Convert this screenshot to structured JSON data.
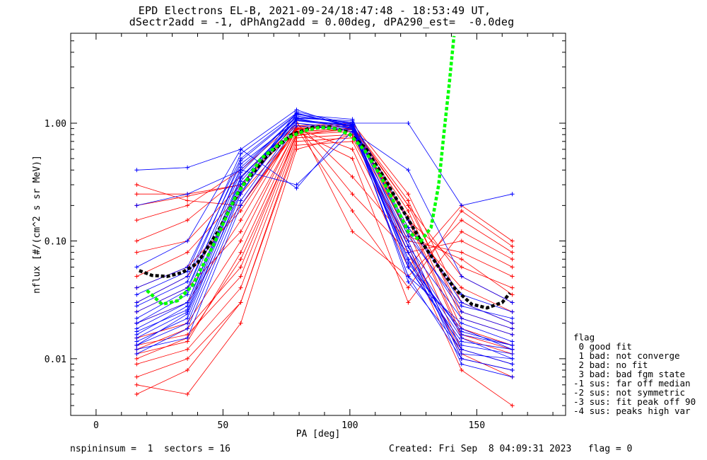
{
  "title_line1": "EPD Electrons EL-B, 2021-09-24/18:47:48 - 18:53:49 UT,",
  "title_line2": "dSectr2add = -1, dPhAng2add = 0.00deg, dPA290_est=  -0.0deg",
  "legend": {
    "title": "flag",
    "items": [
      " 0 good fit",
      " 1 bad: not converge",
      " 2 bad: no fit",
      " 3 bad: bad fgm state",
      "-1 sus: far off median",
      "-2 sus: not symmetric",
      "-3 sus: fit peak off 90",
      "-4 sus: peaks high var"
    ]
  },
  "footer": {
    "left": "nspininsum =  1  sectors = 16",
    "right": "Created: Fri Sep  8 04:09:31 2023   flag = 0"
  },
  "colors": {
    "red": "#ff0000",
    "blue": "#0000ff",
    "green": "#00ff00",
    "black": "#000000"
  },
  "chart_data": {
    "type": "line",
    "xlabel": "PA [deg]",
    "ylabel": "nflux [#/(cm^2 s sr MeV)]",
    "xlim": [
      -10,
      185
    ],
    "ylim": [
      0.0033,
      5.8
    ],
    "yscale": "log",
    "xticks": [
      0,
      50,
      100,
      150
    ],
    "xtick_labels": [
      "0",
      "50",
      "100",
      "150"
    ],
    "yticks": [
      0.01,
      0.1,
      1.0
    ],
    "ytick_labels": [
      "0.01",
      "0.10",
      "1.00"
    ],
    "sector_pa": [
      16,
      36,
      57,
      79,
      101,
      123,
      144,
      164
    ],
    "series": [
      {
        "color": "red",
        "curves": [
          [
            0.011,
            0.014,
            0.08,
            0.85,
            0.9,
            0.18,
            0.018,
            0.013
          ],
          [
            0.013,
            0.016,
            0.05,
            0.8,
            0.85,
            0.15,
            0.015,
            0.011
          ],
          [
            0.009,
            0.012,
            0.04,
            0.75,
            0.8,
            0.12,
            0.012,
            0.009
          ],
          [
            0.007,
            0.01,
            0.03,
            0.7,
            0.75,
            0.1,
            0.01,
            0.008
          ],
          [
            0.015,
            0.02,
            0.1,
            0.9,
            0.95,
            0.22,
            0.022,
            0.016
          ],
          [
            0.02,
            0.03,
            0.15,
            0.95,
            1.0,
            0.25,
            0.03,
            0.02
          ],
          [
            0.03,
            0.05,
            0.2,
            0.9,
            0.95,
            0.2,
            0.05,
            0.03
          ],
          [
            0.05,
            0.08,
            0.25,
            0.85,
            0.9,
            0.15,
            0.06,
            0.04
          ],
          [
            0.08,
            0.1,
            0.3,
            1.0,
            0.35,
            0.1,
            0.08,
            0.05
          ],
          [
            0.1,
            0.15,
            0.35,
            0.95,
            0.25,
            0.08,
            0.1,
            0.06
          ],
          [
            0.15,
            0.2,
            0.4,
            1.05,
            0.12,
            0.05,
            0.15,
            0.08
          ],
          [
            0.2,
            0.24,
            0.3,
            0.9,
            0.6,
            0.06,
            0.2,
            0.1
          ],
          [
            0.25,
            0.25,
            0.3,
            0.9,
            0.18,
            0.04,
            0.18,
            0.09
          ],
          [
            0.3,
            0.22,
            0.2,
            0.85,
            0.5,
            0.03,
            0.12,
            0.07
          ],
          [
            0.005,
            0.008,
            0.03,
            0.65,
            0.7,
            0.08,
            0.008,
            0.004
          ],
          [
            0.006,
            0.005,
            0.02,
            0.6,
            0.8,
            0.09,
            0.011,
            0.007
          ],
          [
            0.012,
            0.018,
            0.06,
            0.82,
            0.88,
            0.16,
            0.016,
            0.012
          ],
          [
            0.01,
            0.015,
            0.07,
            0.78,
            0.92,
            0.2,
            0.025,
            0.018
          ],
          [
            0.025,
            0.04,
            0.12,
            0.88,
            0.96,
            0.13,
            0.04,
            0.025
          ],
          [
            0.04,
            0.06,
            0.18,
            0.92,
            0.98,
            0.11,
            0.07,
            0.035
          ]
        ]
      },
      {
        "color": "blue",
        "curves": [
          [
            0.013,
            0.02,
            0.25,
            1.2,
            0.95,
            0.1,
            0.01,
            0.008
          ],
          [
            0.015,
            0.025,
            0.3,
            1.1,
            0.9,
            0.08,
            0.012,
            0.009
          ],
          [
            0.02,
            0.03,
            0.35,
            1.0,
            0.85,
            0.07,
            0.015,
            0.01
          ],
          [
            0.025,
            0.04,
            0.4,
            1.15,
            1.0,
            0.06,
            0.018,
            0.012
          ],
          [
            0.03,
            0.05,
            0.45,
            1.05,
            0.92,
            0.05,
            0.02,
            0.014
          ],
          [
            0.012,
            0.015,
            0.2,
            0.95,
            0.88,
            0.09,
            0.009,
            0.007
          ],
          [
            0.014,
            0.022,
            0.28,
            1.25,
            0.98,
            0.12,
            0.025,
            0.018
          ],
          [
            0.018,
            0.03,
            0.32,
            1.1,
            1.05,
            0.15,
            0.03,
            0.02
          ],
          [
            0.04,
            0.06,
            0.5,
            1.2,
            0.95,
            0.06,
            0.013,
            0.011
          ],
          [
            0.06,
            0.1,
            0.6,
            1.3,
            0.9,
            0.08,
            0.016,
            0.013
          ],
          [
            0.2,
            0.25,
            0.4,
            0.3,
            0.85,
            0.4,
            0.05,
            0.03
          ],
          [
            0.4,
            0.42,
            0.6,
            0.28,
            1.0,
            1.0,
            0.2,
            0.25
          ],
          [
            0.02,
            0.035,
            0.38,
            1.15,
            0.98,
            0.07,
            0.011,
            0.01
          ],
          [
            0.016,
            0.028,
            0.3,
            1.08,
            0.94,
            0.06,
            0.014,
            0.012
          ],
          [
            0.022,
            0.038,
            0.42,
            1.12,
            1.02,
            0.09,
            0.022,
            0.016
          ],
          [
            0.011,
            0.018,
            0.22,
            1.0,
            0.9,
            0.05,
            0.01,
            0.008
          ],
          [
            0.013,
            0.024,
            0.26,
            1.05,
            0.96,
            0.045,
            0.012,
            0.009
          ],
          [
            0.028,
            0.045,
            0.48,
            1.18,
            1.08,
            0.11,
            0.028,
            0.022
          ],
          [
            0.035,
            0.055,
            0.55,
            1.22,
            0.93,
            0.13,
            0.035,
            0.025
          ],
          [
            0.017,
            0.026,
            0.34,
            1.06,
            0.97,
            0.065,
            0.017,
            0.013
          ]
        ]
      },
      {
        "color": "black",
        "style": "dashed",
        "x": [
          17,
          22,
          28,
          34,
          40,
          48,
          57,
          67,
          77,
          85,
          92,
          99,
          106,
          113,
          121,
          128,
          135,
          142,
          148,
          154,
          160,
          163
        ],
        "y": [
          0.056,
          0.051,
          0.05,
          0.054,
          0.065,
          0.12,
          0.28,
          0.52,
          0.8,
          0.92,
          0.93,
          0.84,
          0.62,
          0.36,
          0.18,
          0.1,
          0.06,
          0.038,
          0.029,
          0.027,
          0.03,
          0.036
        ]
      },
      {
        "color": "green",
        "style": "dashed",
        "x": [
          20,
          26,
          32,
          38,
          46,
          55,
          65,
          75,
          82,
          88,
          94,
          100,
          106,
          112,
          118,
          123,
          128,
          132,
          135,
          137,
          139,
          141
        ],
        "y": [
          0.038,
          0.029,
          0.031,
          0.042,
          0.09,
          0.24,
          0.5,
          0.74,
          0.86,
          0.92,
          0.9,
          0.8,
          0.58,
          0.36,
          0.2,
          0.12,
          0.1,
          0.13,
          0.3,
          0.8,
          2.0,
          5.5
        ]
      }
    ]
  }
}
